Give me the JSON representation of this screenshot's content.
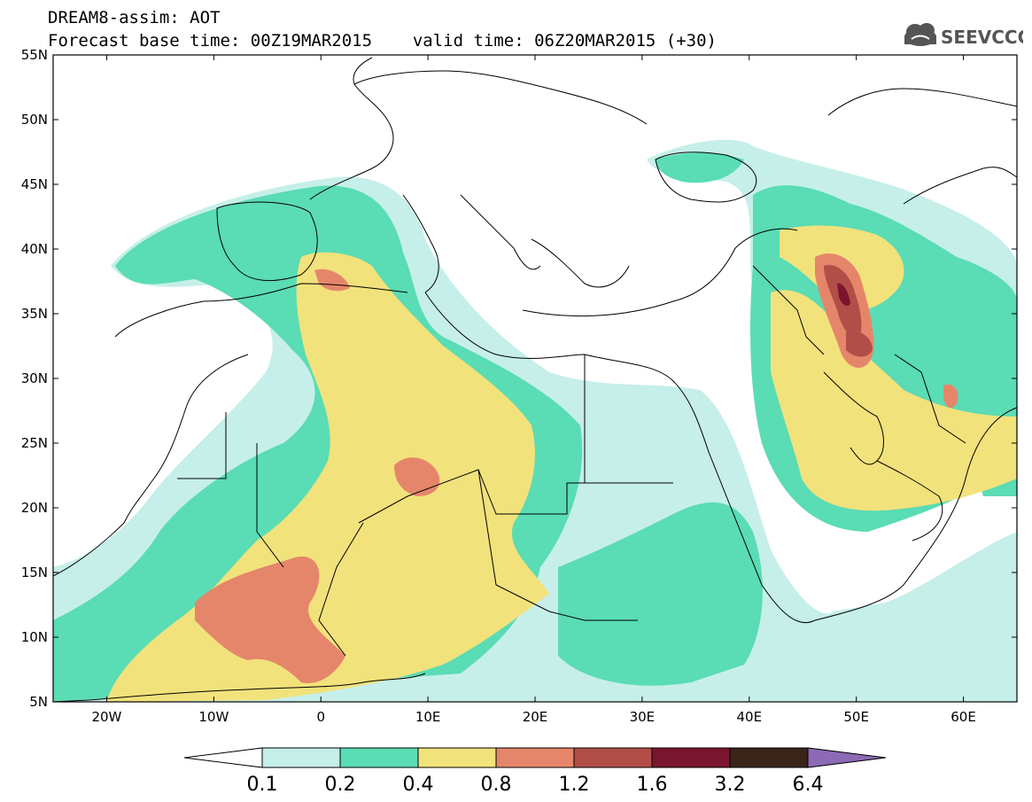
{
  "header": {
    "title": "DREAM8-assim: AOT",
    "base_time_label": "Forecast base time: 00Z19MAR2015",
    "valid_time_label": "valid time: 06Z20MAR2015 (+30)",
    "logo_text": "SEEVCCC"
  },
  "map": {
    "lon_range": [
      -25,
      65
    ],
    "lat_range": [
      5,
      55
    ],
    "x_ticks": [
      "20W",
      "10W",
      "0",
      "10E",
      "20E",
      "30E",
      "40E",
      "50E",
      "60E"
    ],
    "y_ticks": [
      "55N",
      "50N",
      "45N",
      "40N",
      "35N",
      "30N",
      "25N",
      "20N",
      "15N",
      "10N",
      "5N"
    ]
  },
  "colorbar": {
    "labels": [
      "0.1",
      "0.2",
      "0.4",
      "0.8",
      "1.2",
      "1.6",
      "3.2",
      "6.4"
    ],
    "colors": {
      "c1": "#c6efea",
      "c2": "#5adcb4",
      "c3": "#f2e27c",
      "c4": "#e5866a",
      "c5": "#b24e48",
      "c6": "#7a1530",
      "c7": "#3a2418",
      "c8": "#8c6ab4"
    }
  }
}
